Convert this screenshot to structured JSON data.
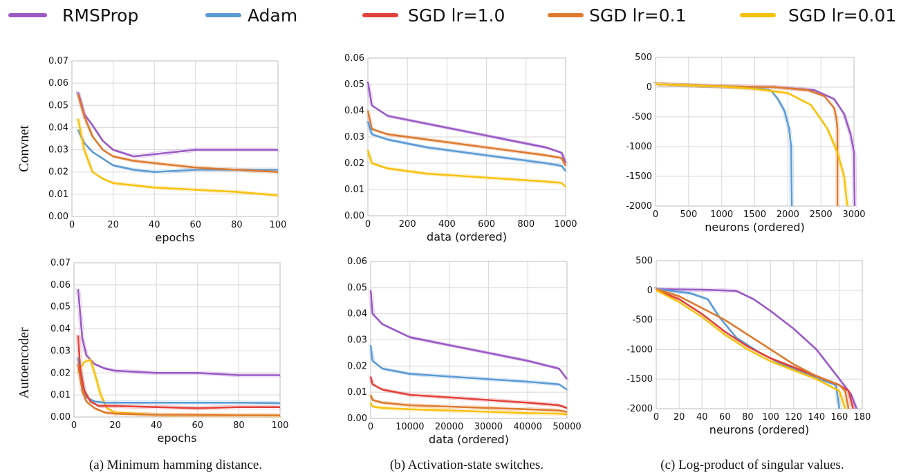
{
  "legend": [
    {
      "label": "RMSProp",
      "color": "#9b59c6"
    },
    {
      "label": "Adam",
      "color": "#5b9bd5"
    },
    {
      "label": "SGD lr=1.0",
      "color": "#e2413a"
    },
    {
      "label": "SGD lr=0.1",
      "color": "#de7a2e"
    },
    {
      "label": "SGD lr=0.01",
      "color": "#f8c10f"
    }
  ],
  "row_labels": [
    "Convnet",
    "Autoencoder"
  ],
  "captions": [
    "(a) Minimum hamming distance.",
    "(b) Activation-state switches.",
    "(c) Log-product of singular values."
  ],
  "chart_data": [
    {
      "type": "line",
      "xlabel": "epochs",
      "xlim": [
        0,
        100
      ],
      "ylim": [
        0,
        0.07
      ],
      "xticks": [
        "0",
        "20",
        "40",
        "60",
        "80",
        "100"
      ],
      "yticks": [
        "0.00",
        "0.01",
        "0.02",
        "0.03",
        "0.04",
        "0.05",
        "0.06",
        "0.07"
      ],
      "grid": true,
      "series": [
        {
          "name": "RMSProp",
          "x": [
            3,
            6,
            10,
            15,
            20,
            30,
            40,
            60,
            80,
            100
          ],
          "y": [
            0.056,
            0.046,
            0.041,
            0.034,
            0.03,
            0.027,
            0.028,
            0.03,
            0.03,
            0.03
          ]
        },
        {
          "name": "Adam",
          "x": [
            3,
            6,
            10,
            15,
            20,
            30,
            40,
            60,
            80,
            100
          ],
          "y": [
            0.039,
            0.033,
            0.029,
            0.026,
            0.023,
            0.021,
            0.02,
            0.021,
            0.021,
            0.021
          ]
        },
        {
          "name": "SGD lr=0.1",
          "x": [
            3,
            6,
            10,
            15,
            20,
            30,
            40,
            60,
            80,
            100
          ],
          "y": [
            0.055,
            0.045,
            0.036,
            0.03,
            0.027,
            0.025,
            0.024,
            0.022,
            0.021,
            0.02
          ]
        },
        {
          "name": "SGD lr=0.01",
          "x": [
            3,
            6,
            10,
            15,
            20,
            30,
            40,
            60,
            80,
            100
          ],
          "y": [
            0.044,
            0.03,
            0.02,
            0.017,
            0.015,
            0.014,
            0.013,
            0.012,
            0.011,
            0.0095
          ]
        }
      ]
    },
    {
      "type": "line",
      "xlabel": "data (ordered)",
      "xlim": [
        0,
        1000
      ],
      "ylim": [
        0,
        0.06
      ],
      "xticks": [
        "0",
        "200",
        "400",
        "600",
        "800",
        "1000"
      ],
      "yticks": [
        "0.00",
        "0.01",
        "0.02",
        "0.03",
        "0.04",
        "0.05",
        "0.06"
      ],
      "grid": true,
      "series": [
        {
          "name": "RMSProp",
          "x": [
            0,
            20,
            100,
            300,
            500,
            700,
            900,
            980,
            1000
          ],
          "y": [
            0.051,
            0.042,
            0.038,
            0.035,
            0.032,
            0.029,
            0.026,
            0.024,
            0.02
          ]
        },
        {
          "name": "SGD lr=0.1",
          "x": [
            0,
            20,
            100,
            300,
            500,
            700,
            900,
            980,
            1000
          ],
          "y": [
            0.04,
            0.033,
            0.031,
            0.029,
            0.027,
            0.025,
            0.023,
            0.022,
            0.019
          ]
        },
        {
          "name": "Adam",
          "x": [
            0,
            20,
            100,
            300,
            500,
            700,
            900,
            980,
            1000
          ],
          "y": [
            0.036,
            0.031,
            0.029,
            0.026,
            0.024,
            0.022,
            0.02,
            0.019,
            0.017
          ]
        },
        {
          "name": "SGD lr=0.01",
          "x": [
            0,
            20,
            100,
            300,
            500,
            700,
            900,
            980,
            1000
          ],
          "y": [
            0.025,
            0.02,
            0.018,
            0.016,
            0.015,
            0.014,
            0.013,
            0.0125,
            0.011
          ]
        }
      ]
    },
    {
      "type": "line",
      "xlabel": "neurons (ordered)",
      "xlim": [
        0,
        3000
      ],
      "ylim": [
        -2000,
        500
      ],
      "xticks": [
        "0",
        "500",
        "1000",
        "1500",
        "2000",
        "2500",
        "3000"
      ],
      "yticks": [
        "-2000",
        "-1500",
        "-1000",
        "-500",
        "0",
        "500"
      ],
      "grid": true,
      "series": [
        {
          "name": "RMSProp",
          "x": [
            0,
            1000,
            1800,
            2400,
            2700,
            2850,
            2950,
            3000,
            3010
          ],
          "y": [
            50,
            15,
            0,
            -50,
            -200,
            -450,
            -800,
            -1100,
            -2000
          ]
        },
        {
          "name": "Adam",
          "x": [
            0,
            1000,
            1600,
            1750,
            1850,
            1950,
            2020,
            2050,
            2060
          ],
          "y": [
            50,
            10,
            -20,
            -60,
            -200,
            -400,
            -700,
            -1000,
            -2000
          ]
        },
        {
          "name": "SGD lr=0.1",
          "x": [
            0,
            1000,
            1800,
            2300,
            2550,
            2700,
            2730,
            2750,
            2750
          ],
          "y": [
            50,
            15,
            0,
            -50,
            -150,
            -350,
            -500,
            -700,
            -2000
          ]
        },
        {
          "name": "SGD lr=0.01",
          "x": [
            0,
            1000,
            1500,
            2000,
            2350,
            2600,
            2750,
            2850,
            2900
          ],
          "y": [
            50,
            10,
            -30,
            -100,
            -300,
            -700,
            -1100,
            -1500,
            -2000
          ]
        }
      ]
    },
    {
      "type": "line",
      "xlabel": "epochs",
      "xlim": [
        0,
        100
      ],
      "ylim": [
        0,
        0.07
      ],
      "xticks": [
        "0",
        "20",
        "40",
        "60",
        "80",
        "100"
      ],
      "yticks": [
        "0.00",
        "0.01",
        "0.02",
        "0.03",
        "0.04",
        "0.05",
        "0.06",
        "0.07"
      ],
      "grid": true,
      "series": [
        {
          "name": "RMSProp",
          "x": [
            2,
            4,
            6,
            10,
            15,
            20,
            40,
            60,
            80,
            100
          ],
          "y": [
            0.058,
            0.036,
            0.028,
            0.024,
            0.022,
            0.021,
            0.02,
            0.02,
            0.019,
            0.019
          ]
        },
        {
          "name": "SGD lr=0.01",
          "x": [
            2,
            5,
            8,
            10,
            13,
            16,
            20,
            40,
            60,
            100
          ],
          "y": [
            0.02,
            0.025,
            0.026,
            0.02,
            0.01,
            0.004,
            0.002,
            0.001,
            0.0008,
            0.0007
          ]
        },
        {
          "name": "Adam",
          "x": [
            2,
            4,
            6,
            10,
            15,
            20,
            40,
            60,
            80,
            100
          ],
          "y": [
            0.027,
            0.015,
            0.009,
            0.007,
            0.0065,
            0.0065,
            0.0065,
            0.0065,
            0.0065,
            0.0063
          ]
        },
        {
          "name": "SGD lr=0.1",
          "x": [
            2,
            4,
            6,
            10,
            15,
            20,
            40,
            60,
            80,
            100
          ],
          "y": [
            0.024,
            0.012,
            0.007,
            0.004,
            0.002,
            0.0015,
            0.001,
            0.0009,
            0.0008,
            0.0008
          ]
        },
        {
          "name": "SGD lr=1.0",
          "x": [
            2,
            3,
            5,
            8,
            12,
            20,
            40,
            60,
            80,
            100
          ],
          "y": [
            0.037,
            0.022,
            0.012,
            0.007,
            0.005,
            0.005,
            0.0045,
            0.004,
            0.0045,
            0.0045
          ]
        }
      ]
    },
    {
      "type": "line",
      "xlabel": "data (ordered)",
      "xlim": [
        0,
        50000
      ],
      "ylim": [
        0,
        0.06
      ],
      "xticks": [
        "0",
        "10000",
        "20000",
        "30000",
        "40000",
        "50000"
      ],
      "yticks": [
        "0.00",
        "0.01",
        "0.02",
        "0.03",
        "0.04",
        "0.05",
        "0.06"
      ],
      "grid": true,
      "series": [
        {
          "name": "RMSProp",
          "x": [
            0,
            500,
            3000,
            10000,
            20000,
            30000,
            40000,
            48000,
            50000
          ],
          "y": [
            0.049,
            0.04,
            0.036,
            0.031,
            0.028,
            0.025,
            0.022,
            0.019,
            0.015
          ]
        },
        {
          "name": "Adam",
          "x": [
            0,
            500,
            3000,
            10000,
            20000,
            30000,
            40000,
            48000,
            50000
          ],
          "y": [
            0.028,
            0.022,
            0.019,
            0.017,
            0.016,
            0.015,
            0.014,
            0.013,
            0.011
          ]
        },
        {
          "name": "SGD lr=1.0",
          "x": [
            0,
            500,
            3000,
            10000,
            20000,
            30000,
            40000,
            48000,
            50000
          ],
          "y": [
            0.016,
            0.013,
            0.011,
            0.009,
            0.008,
            0.007,
            0.006,
            0.005,
            0.004
          ]
        },
        {
          "name": "SGD lr=0.1",
          "x": [
            0,
            500,
            3000,
            10000,
            20000,
            30000,
            40000,
            48000,
            50000
          ],
          "y": [
            0.009,
            0.007,
            0.006,
            0.005,
            0.0045,
            0.004,
            0.0035,
            0.003,
            0.0025
          ]
        },
        {
          "name": "SGD lr=0.01",
          "x": [
            0,
            500,
            3000,
            10000,
            20000,
            30000,
            40000,
            48000,
            50000
          ],
          "y": [
            0.006,
            0.0045,
            0.004,
            0.0035,
            0.003,
            0.0025,
            0.002,
            0.0018,
            0.0015
          ]
        }
      ]
    },
    {
      "type": "line",
      "xlabel": "neurons (ordered)",
      "xlim": [
        0,
        180
      ],
      "ylim": [
        -2000,
        500
      ],
      "xticks": [
        "0",
        "20",
        "40",
        "60",
        "80",
        "100",
        "120",
        "140",
        "160",
        "180"
      ],
      "yticks": [
        "-2000",
        "-1500",
        "-1000",
        "-500",
        "0",
        "500"
      ],
      "grid": true,
      "series": [
        {
          "name": "RMSProp",
          "x": [
            0,
            40,
            70,
            85,
            100,
            120,
            140,
            160,
            170,
            175
          ],
          "y": [
            20,
            10,
            -10,
            -150,
            -350,
            -650,
            -1000,
            -1500,
            -1750,
            -2000
          ]
        },
        {
          "name": "Adam",
          "x": [
            0,
            30,
            45,
            55,
            70,
            90,
            110,
            130,
            150,
            157,
            160
          ],
          "y": [
            20,
            -50,
            -150,
            -450,
            -800,
            -1050,
            -1250,
            -1400,
            -1550,
            -1600,
            -2000
          ]
        },
        {
          "name": "SGD lr=1.0",
          "x": [
            0,
            20,
            40,
            60,
            80,
            100,
            120,
            140,
            160,
            168,
            172
          ],
          "y": [
            0,
            -150,
            -400,
            -700,
            -950,
            -1150,
            -1300,
            -1450,
            -1600,
            -1700,
            -2000
          ]
        },
        {
          "name": "SGD lr=0.1",
          "x": [
            0,
            20,
            40,
            60,
            80,
            100,
            120,
            140,
            160,
            165,
            168
          ],
          "y": [
            20,
            -100,
            -300,
            -500,
            -750,
            -1000,
            -1250,
            -1450,
            -1600,
            -1700,
            -2000
          ]
        },
        {
          "name": "SGD lr=0.01",
          "x": [
            0,
            20,
            40,
            60,
            80,
            100,
            120,
            140,
            160,
            165
          ],
          "y": [
            0,
            -200,
            -450,
            -750,
            -1000,
            -1200,
            -1350,
            -1500,
            -1700,
            -2000
          ]
        }
      ]
    }
  ]
}
